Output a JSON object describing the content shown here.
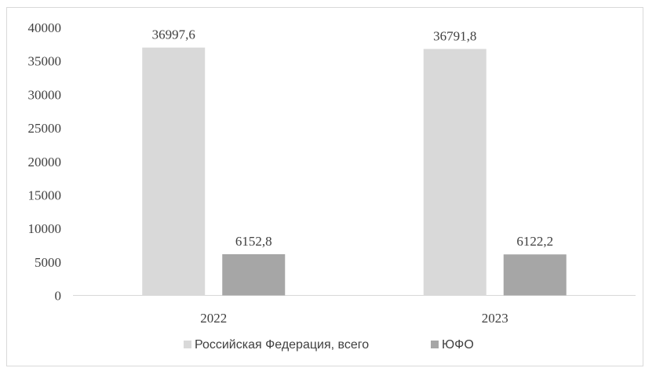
{
  "chart_data": {
    "type": "bar",
    "categories": [
      "2022",
      "2023"
    ],
    "series": [
      {
        "name": "Российская Федерация, всего",
        "values": [
          36997.6,
          36791.8
        ],
        "labels": [
          "36997,6",
          "36791,8"
        ],
        "color": "#d9d9d9"
      },
      {
        "name": "ЮФО",
        "values": [
          6152.8,
          6122.2
        ],
        "labels": [
          "6152,8",
          "6122,2"
        ],
        "color": "#a6a6a6"
      }
    ],
    "ylim": [
      0,
      40000
    ],
    "yticks": [
      "0",
      "5000",
      "10000",
      "15000",
      "20000",
      "25000",
      "30000",
      "35000",
      "40000"
    ],
    "title": "",
    "xlabel": "",
    "ylabel": "",
    "grid": false,
    "legend_position": "bottom"
  }
}
